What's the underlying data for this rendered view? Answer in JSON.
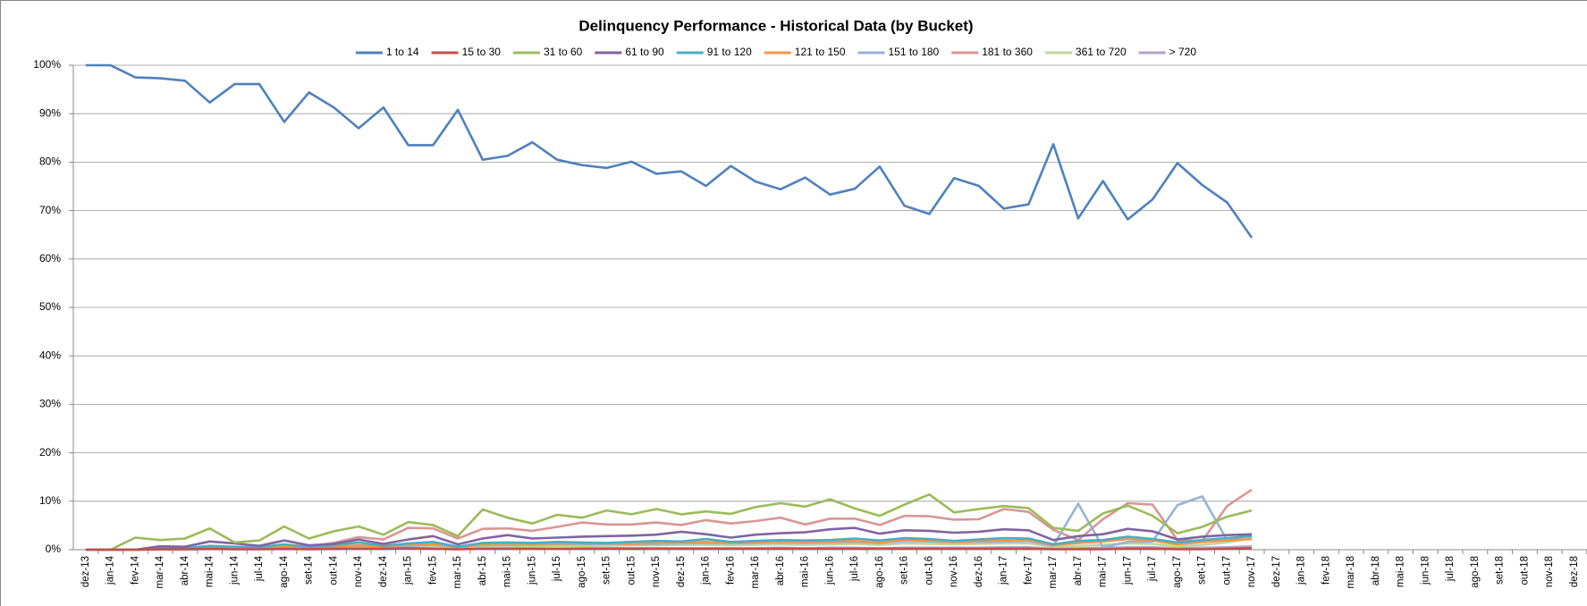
{
  "chart_data": {
    "type": "line",
    "title": "Delinquency Performance - Historical Data (by Bucket)",
    "categories": [
      "dez-13",
      "jan-14",
      "fev-14",
      "mar-14",
      "abr-14",
      "mai-14",
      "jun-14",
      "jul-14",
      "ago-14",
      "set-14",
      "out-14",
      "nov-14",
      "dez-14",
      "jan-15",
      "fev-15",
      "mar-15",
      "abr-15",
      "mai-15",
      "jun-15",
      "jul-15",
      "ago-15",
      "set-15",
      "out-15",
      "nov-15",
      "dez-15",
      "jan-16",
      "fev-16",
      "mar-16",
      "abr-16",
      "mai-16",
      "jun-16",
      "jul-16",
      "ago-16",
      "set-16",
      "out-16",
      "nov-16",
      "dez-16",
      "jan-17",
      "fev-17",
      "mar-17",
      "abr-17",
      "mai-17",
      "jun-17",
      "jul-17",
      "ago-17",
      "set-17",
      "out-17",
      "nov-17",
      "dez-17",
      "jan-18",
      "fev-18",
      "mar-18",
      "abr-18",
      "mai-18",
      "jun-18",
      "jul-18",
      "ago-18",
      "set-18",
      "out-18",
      "nov-18",
      "dez-18"
    ],
    "ylim": [
      0,
      100
    ],
    "yticks": [
      {
        "value": 0,
        "label": "0%"
      },
      {
        "value": 10,
        "label": "10%"
      },
      {
        "value": 20,
        "label": "20%"
      },
      {
        "value": 30,
        "label": "30%"
      },
      {
        "value": 40,
        "label": "40%"
      },
      {
        "value": 50,
        "label": "50%"
      },
      {
        "value": 60,
        "label": "60%"
      },
      {
        "value": 70,
        "label": "70%"
      },
      {
        "value": 80,
        "label": "80%"
      },
      {
        "value": 90,
        "label": "90%"
      },
      {
        "value": 100,
        "label": "100%"
      }
    ],
    "grid": true,
    "legend": "top",
    "series": [
      {
        "name": "1 to 14",
        "color": "#4F81BD",
        "values": [
          100,
          100,
          97.5,
          97.3,
          96.8,
          92.3,
          96.1,
          96.1,
          88.3,
          94.4,
          91.3,
          87,
          91.3,
          83.5,
          83.5,
          90.8,
          80.5,
          81.3,
          84.1,
          80.5,
          79.4,
          78.8,
          80.1,
          77.6,
          78.1,
          75.1,
          79.2,
          76,
          74.4,
          76.8,
          73.3,
          74.5,
          79.1,
          71,
          69.3,
          76.7,
          75.1,
          70.4,
          71.3,
          83.7,
          68.4,
          76.1,
          68.2,
          72.3,
          79.8,
          75.3,
          71.7,
          64.4,
          null,
          null,
          null,
          null,
          null,
          null,
          null,
          null,
          null,
          null,
          null,
          null,
          null
        ]
      },
      {
        "name": "15 to 30",
        "color": "#C0504D",
        "values": [
          0,
          0,
          0,
          0.1,
          0.1,
          0.2,
          0.1,
          0.1,
          0.2,
          0.1,
          0.2,
          0.2,
          0.2,
          0.3,
          0.2,
          0.1,
          0.2,
          0.2,
          0.2,
          0.2,
          0.2,
          0.2,
          0.2,
          0.2,
          0.2,
          0.2,
          0.2,
          0.2,
          0.2,
          0.2,
          0.2,
          0.2,
          0.2,
          0.2,
          0.2,
          0.2,
          0.2,
          0.2,
          0.2,
          0.1,
          0.1,
          0.1,
          0.2,
          0.2,
          0.1,
          0.1,
          0.2,
          0.3,
          null,
          null,
          null,
          null,
          null,
          null,
          null,
          null,
          null,
          null,
          null,
          null,
          null
        ]
      },
      {
        "name": "31 to 60",
        "color": "#9BBB59",
        "values": [
          0,
          0,
          2.5,
          2,
          2.3,
          4.4,
          1.5,
          1.9,
          4.8,
          2.3,
          3.8,
          4.8,
          3.1,
          5.7,
          5.1,
          2.8,
          8.3,
          6.6,
          5.4,
          7.2,
          6.6,
          8.1,
          7.3,
          8.4,
          7.3,
          7.9,
          7.4,
          8.8,
          9.6,
          8.9,
          10.4,
          8.5,
          7,
          9.3,
          11.4,
          7.7,
          8.4,
          9,
          8.6,
          4.5,
          3.9,
          7.5,
          9.1,
          7,
          3.4,
          4.7,
          6.8,
          8.1,
          null,
          null,
          null,
          null,
          null,
          null,
          null,
          null,
          null,
          null,
          null,
          null,
          null
        ]
      },
      {
        "name": "61 to 90",
        "color": "#8064A2",
        "values": [
          0,
          0,
          0,
          0.7,
          0.6,
          1.7,
          1.3,
          0.8,
          1.9,
          0.9,
          1.2,
          2.1,
          1.2,
          2.1,
          2.8,
          1.1,
          2.3,
          3,
          2.3,
          2.5,
          2.7,
          2.8,
          2.9,
          3.1,
          3.7,
          3.2,
          2.5,
          3.1,
          3.4,
          3.6,
          4.2,
          4.5,
          3.3,
          4,
          3.9,
          3.5,
          3.7,
          4.2,
          4,
          2,
          2.8,
          3.2,
          4.3,
          3.8,
          2.1,
          2.7,
          3,
          3.2,
          null,
          null,
          null,
          null,
          null,
          null,
          null,
          null,
          null,
          null,
          null,
          null,
          null
        ]
      },
      {
        "name": "91 to 120",
        "color": "#4BACC6",
        "values": [
          0,
          0,
          0,
          0.2,
          0.3,
          0.8,
          0.6,
          0.5,
          1.1,
          0.5,
          0.9,
          1.5,
          0.8,
          1.3,
          1.6,
          0.6,
          1.4,
          1.5,
          1.4,
          1.6,
          1.5,
          1.4,
          1.6,
          1.8,
          1.7,
          2.2,
          1.6,
          1.8,
          2,
          1.9,
          2,
          2.3,
          1.9,
          2.4,
          2.2,
          1.8,
          2.1,
          2.4,
          2.3,
          1.1,
          1.8,
          2,
          2.7,
          2.2,
          1.5,
          2,
          2.4,
          2.8,
          null,
          null,
          null,
          null,
          null,
          null,
          null,
          null,
          null,
          null,
          null,
          null,
          null
        ]
      },
      {
        "name": "121 to 150",
        "color": "#F79646",
        "values": [
          0,
          0,
          0,
          0.1,
          0.2,
          0.4,
          0.5,
          0.3,
          0.6,
          0.5,
          0.6,
          0.9,
          0.7,
          1,
          1.2,
          0.5,
          1.1,
          1.3,
          1.2,
          1.3,
          1.4,
          1.3,
          1.2,
          1.4,
          1.5,
          1.6,
          1.4,
          1.5,
          1.7,
          1.6,
          1.7,
          1.8,
          1.4,
          2.1,
          1.9,
          1.6,
          1.8,
          1.9,
          2,
          0.9,
          1.4,
          1.7,
          2.2,
          1.9,
          1.1,
          1.6,
          1.9,
          2.2,
          null,
          null,
          null,
          null,
          null,
          null,
          null,
          null,
          null,
          null,
          null,
          null,
          null
        ]
      },
      {
        "name": "151 to 180",
        "color": "#95B3D7",
        "values": [
          0,
          0,
          0,
          0.1,
          0.2,
          0.3,
          0.4,
          0.3,
          0.4,
          0.4,
          0.5,
          0.8,
          0.6,
          0.8,
          1,
          0.5,
          0.9,
          1,
          1,
          1.1,
          1.1,
          1.2,
          1.1,
          1.2,
          1.3,
          1.4,
          1.3,
          1.4,
          1.5,
          1.4,
          1.5,
          1.6,
          1.4,
          1.8,
          1.7,
          1.5,
          1.6,
          1.7,
          1.8,
          0.8,
          9.5,
          0.5,
          1.6,
          1.7,
          9.2,
          11,
          2,
          3,
          null,
          null,
          null,
          null,
          null,
          null,
          null,
          null,
          null,
          null,
          null,
          null,
          null
        ]
      },
      {
        "name": "181 to 360",
        "color": "#D99694",
        "values": [
          0,
          0,
          0,
          0.3,
          0.4,
          0.5,
          0.5,
          0.5,
          1,
          0.7,
          1.4,
          2.6,
          2.1,
          4.5,
          4.4,
          2.3,
          4.3,
          4.4,
          3.9,
          4.7,
          5.6,
          5.2,
          5.2,
          5.6,
          5.1,
          6.1,
          5.4,
          5.9,
          6.6,
          5.2,
          6.4,
          6.4,
          5.1,
          7,
          6.9,
          6.2,
          6.3,
          8.4,
          7.8,
          4.1,
          2,
          6.3,
          9.6,
          9.3,
          2,
          1.8,
          9,
          12.4,
          null,
          null,
          null,
          null,
          null,
          null,
          null,
          null,
          null,
          null,
          null,
          null,
          null
        ]
      },
      {
        "name": "361 to 720",
        "color": "#C3D69B",
        "values": [
          0,
          0,
          0,
          0.1,
          0.1,
          0.2,
          0.2,
          0.2,
          0.3,
          0.3,
          0.4,
          0.5,
          0.4,
          0.6,
          0.7,
          0.4,
          0.6,
          0.7,
          0.7,
          0.8,
          0.8,
          0.8,
          0.9,
          0.9,
          1,
          1,
          0.9,
          1,
          1.1,
          1,
          1.1,
          1.2,
          1,
          1.3,
          1.2,
          1.1,
          1.2,
          1.3,
          1.3,
          0.6,
          0.8,
          1,
          1.3,
          1.2,
          0.7,
          1,
          1.5,
          2.4,
          null,
          null,
          null,
          null,
          null,
          null,
          null,
          null,
          null,
          null,
          null,
          null,
          null
        ]
      },
      {
        "name": "> 720",
        "color": "#B3A2C7",
        "values": [
          0,
          0,
          0,
          0,
          0,
          0.1,
          0.1,
          0.1,
          0.1,
          0.1,
          0.1,
          0.2,
          0.1,
          0.2,
          0.2,
          0.1,
          0.2,
          0.2,
          0.2,
          0.2,
          0.3,
          0.3,
          0.3,
          0.3,
          0.3,
          0.3,
          0.3,
          0.3,
          0.4,
          0.3,
          0.4,
          0.4,
          0.3,
          0.4,
          0.4,
          0.4,
          0.4,
          0.5,
          0.5,
          0.2,
          0.3,
          0.4,
          0.5,
          0.5,
          0.3,
          0.4,
          0.5,
          0.7,
          null,
          null,
          null,
          null,
          null,
          null,
          null,
          null,
          null,
          null,
          null,
          null,
          null
        ]
      }
    ]
  }
}
